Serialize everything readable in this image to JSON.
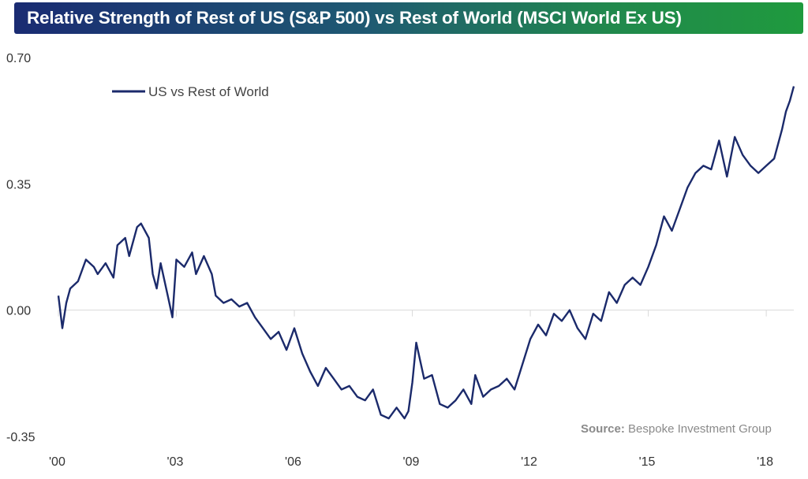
{
  "chart_data": {
    "type": "line",
    "title": "Relative Strength of Rest of US (S&P 500) vs Rest of World (MSCI World Ex US)",
    "xlabel": "",
    "ylabel": "",
    "ylim": [
      -0.35,
      0.7
    ],
    "y_ticks": [
      "0.70",
      "0.35",
      "0.00",
      "-0.35"
    ],
    "y_tick_values": [
      0.7,
      0.35,
      0.0,
      -0.35
    ],
    "x_ticks": [
      "'00",
      "'03",
      "'06",
      "'09",
      "'12",
      "'15",
      "'18"
    ],
    "x_tick_values": [
      2000,
      2003,
      2006,
      2009,
      2012,
      2015,
      2018
    ],
    "xlim": [
      2000,
      2018.7
    ],
    "legend_position": "top-left",
    "series": [
      {
        "name": "US vs Rest of World",
        "color": "#1b2a6b",
        "x": [
          2000.0,
          2000.1,
          2000.2,
          2000.3,
          2000.5,
          2000.7,
          2000.9,
          2001.0,
          2001.2,
          2001.4,
          2001.5,
          2001.7,
          2001.8,
          2002.0,
          2002.1,
          2002.3,
          2002.4,
          2002.5,
          2002.6,
          2002.8,
          2002.9,
          2003.0,
          2003.2,
          2003.4,
          2003.5,
          2003.7,
          2003.9,
          2004.0,
          2004.2,
          2004.4,
          2004.6,
          2004.8,
          2005.0,
          2005.2,
          2005.4,
          2005.6,
          2005.8,
          2006.0,
          2006.2,
          2006.4,
          2006.6,
          2006.8,
          2007.0,
          2007.2,
          2007.4,
          2007.6,
          2007.8,
          2008.0,
          2008.2,
          2008.4,
          2008.6,
          2008.8,
          2008.9,
          2009.0,
          2009.1,
          2009.3,
          2009.5,
          2009.7,
          2009.9,
          2010.1,
          2010.3,
          2010.5,
          2010.6,
          2010.8,
          2011.0,
          2011.2,
          2011.4,
          2011.6,
          2011.8,
          2012.0,
          2012.2,
          2012.4,
          2012.6,
          2012.8,
          2013.0,
          2013.2,
          2013.4,
          2013.6,
          2013.8,
          2014.0,
          2014.2,
          2014.4,
          2014.6,
          2014.8,
          2015.0,
          2015.2,
          2015.4,
          2015.6,
          2015.8,
          2016.0,
          2016.2,
          2016.4,
          2016.6,
          2016.8,
          2017.0,
          2017.2,
          2017.4,
          2017.6,
          2017.8,
          2018.0,
          2018.2,
          2018.4,
          2018.5,
          2018.6,
          2018.7
        ],
        "values": [
          0.04,
          -0.05,
          0.02,
          0.06,
          0.08,
          0.14,
          0.12,
          0.1,
          0.13,
          0.09,
          0.18,
          0.2,
          0.15,
          0.23,
          0.24,
          0.2,
          0.1,
          0.06,
          0.13,
          0.03,
          -0.02,
          0.14,
          0.12,
          0.16,
          0.1,
          0.15,
          0.1,
          0.04,
          0.02,
          0.03,
          0.01,
          0.02,
          -0.02,
          -0.05,
          -0.08,
          -0.06,
          -0.11,
          -0.05,
          -0.12,
          -0.17,
          -0.21,
          -0.16,
          -0.19,
          -0.22,
          -0.21,
          -0.24,
          -0.25,
          -0.22,
          -0.29,
          -0.3,
          -0.27,
          -0.3,
          -0.28,
          -0.2,
          -0.09,
          -0.19,
          -0.18,
          -0.26,
          -0.27,
          -0.25,
          -0.22,
          -0.26,
          -0.18,
          -0.24,
          -0.22,
          -0.21,
          -0.19,
          -0.22,
          -0.15,
          -0.08,
          -0.04,
          -0.07,
          -0.01,
          -0.03,
          0.0,
          -0.05,
          -0.08,
          -0.01,
          -0.03,
          0.05,
          0.02,
          0.07,
          0.09,
          0.07,
          0.12,
          0.18,
          0.26,
          0.22,
          0.28,
          0.34,
          0.38,
          0.4,
          0.39,
          0.47,
          0.37,
          0.48,
          0.43,
          0.4,
          0.38,
          0.4,
          0.42,
          0.5,
          0.55,
          0.58,
          0.62
        ]
      }
    ],
    "source_label": "Source:",
    "source_text": "Bespoke Investment Group"
  }
}
